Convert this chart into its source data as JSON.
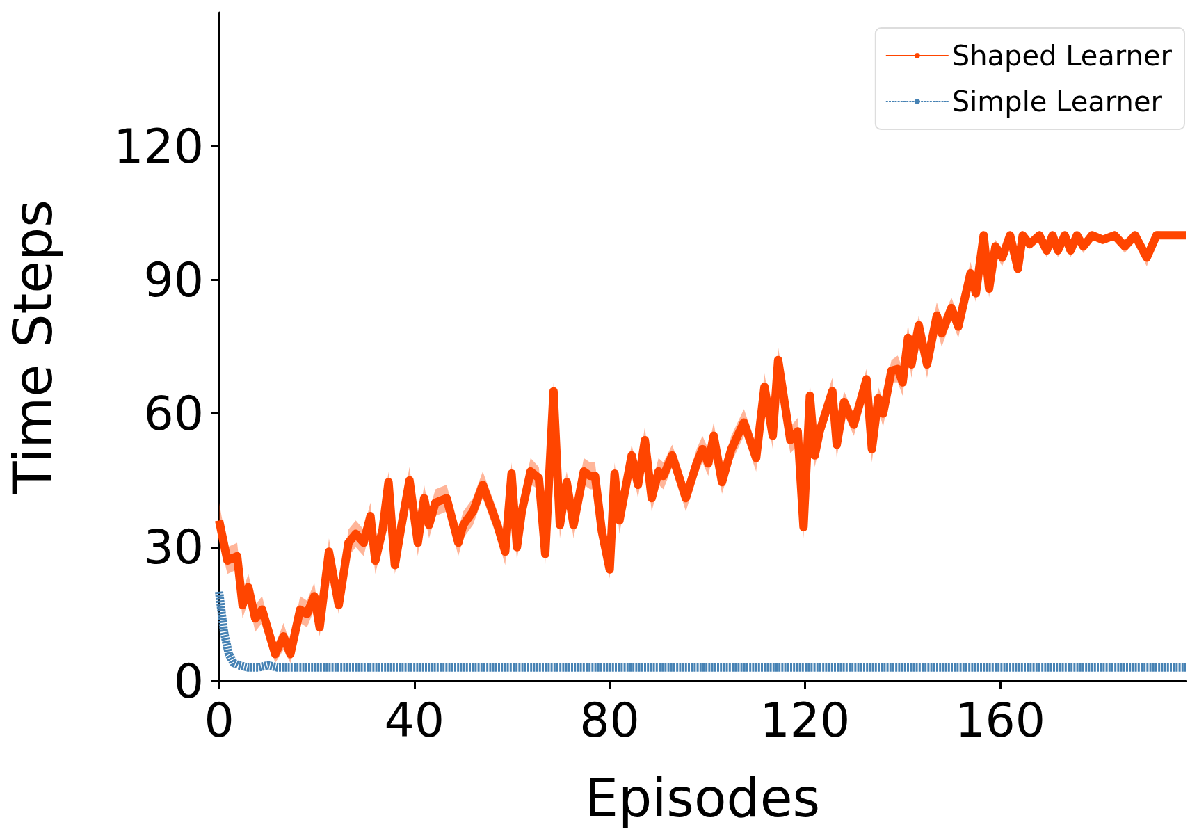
{
  "chart_data": {
    "type": "line",
    "xlabel": "Episodes",
    "ylabel": "Time Steps",
    "xlim": [
      0,
      198
    ],
    "xticks": [
      0,
      40,
      80,
      120,
      160
    ],
    "ylim": [
      0,
      150
    ],
    "yticks": [
      0,
      30,
      60,
      90,
      120
    ],
    "grid": false,
    "legend": "top right",
    "marker": "none",
    "series": [
      {
        "name": "Shaped Learner",
        "color": "#ff4500",
        "line_style": "solid",
        "x": [
          0,
          1.7,
          3.7,
          4.8,
          6,
          7.4,
          8.8,
          11.5,
          13.2,
          14.6,
          16.6,
          18,
          19.5,
          20.6,
          22.5,
          24.5,
          26.5,
          28,
          29.6,
          31,
          32,
          33.5,
          34.7,
          36,
          37.3,
          39,
          40.7,
          42,
          43,
          44.3,
          46.6,
          49,
          50,
          52,
          54,
          57,
          58.6,
          59.9,
          61,
          62,
          63.8,
          65.5,
          66.8,
          68.5,
          69.8,
          71.2,
          72.6,
          74.7,
          76,
          77,
          78.4,
          80,
          81,
          82,
          84.5,
          85.8,
          87.2,
          88.6,
          90,
          91,
          92.8,
          95.6,
          97.8,
          99,
          100.2,
          101.3,
          103,
          104.9,
          107.5,
          110,
          111.7,
          113.4,
          114.5,
          117,
          118.5,
          119.7,
          121,
          122,
          123,
          125.6,
          126.5,
          128,
          130,
          132.6,
          133.7,
          135,
          136,
          137.7,
          139,
          140,
          141.1,
          141.8,
          143.3,
          145,
          147,
          148,
          150,
          151.4,
          153.9,
          155,
          156.6,
          157.7,
          159,
          160.4,
          162,
          163.6,
          164.6,
          166,
          168,
          169.5,
          170.7,
          171.8,
          173.2,
          174.4,
          175.7,
          177,
          178.8,
          181,
          183.4,
          185.5,
          187.6,
          190,
          192,
          198
        ],
        "values": [
          36,
          27,
          28,
          17,
          21,
          14,
          16,
          6,
          10,
          6,
          16,
          15,
          19,
          12,
          29,
          17,
          31,
          33,
          31,
          37,
          27,
          34,
          44.6,
          26,
          34.5,
          45,
          31,
          41,
          35,
          40,
          41,
          31,
          35,
          38,
          44,
          35,
          29,
          46.5,
          30,
          38,
          47,
          45.5,
          28.5,
          65,
          35,
          44.6,
          35,
          47,
          46,
          46,
          33.5,
          25,
          46.5,
          36,
          50.6,
          44,
          54,
          41,
          47,
          46,
          50.6,
          41,
          48.8,
          52,
          48.8,
          55,
          44.6,
          52,
          58,
          50,
          66,
          55,
          72,
          54,
          56,
          34.5,
          64,
          50.6,
          56,
          65,
          53,
          62.6,
          57.5,
          67.7,
          52,
          63.4,
          60,
          69.6,
          70,
          67,
          77,
          71,
          79.8,
          71,
          82,
          78,
          83.7,
          79.5,
          91.5,
          87,
          100,
          88,
          97.5,
          95,
          100,
          92.5,
          100,
          98,
          100,
          96.6,
          100,
          96.6,
          100,
          96.6,
          100,
          97.5,
          100,
          99,
          100,
          97.5,
          100,
          95,
          100,
          100
        ],
        "lower": [
          32,
          24,
          25,
          14,
          18,
          11,
          13,
          4,
          7,
          4,
          13,
          12,
          16,
          10,
          26,
          15,
          28,
          30,
          28,
          34,
          24,
          31,
          42,
          24,
          31,
          42,
          28,
          38,
          32,
          37,
          38,
          28,
          32,
          35,
          41,
          32,
          26,
          44,
          27,
          35,
          44,
          43,
          26,
          63,
          32,
          42,
          32,
          44,
          43,
          43,
          31,
          23,
          44,
          33,
          48,
          41,
          51,
          38,
          44,
          43,
          48,
          38,
          46,
          49,
          46,
          52,
          42,
          49,
          55,
          47,
          63,
          52,
          69,
          51,
          53,
          32,
          61,
          48,
          53,
          62,
          50,
          60,
          55,
          65,
          49,
          61,
          57,
          67,
          67,
          64,
          74,
          68,
          77,
          68,
          79,
          75,
          81,
          77,
          89,
          85,
          98,
          86,
          96,
          93,
          99,
          91,
          99,
          97,
          99,
          95,
          99,
          95,
          99,
          95,
          99,
          96,
          99,
          98,
          99,
          96,
          99,
          93,
          99,
          100
        ],
        "upper": [
          40,
          30,
          31,
          20,
          24,
          17,
          19,
          8,
          13,
          8,
          19,
          18,
          22,
          14,
          32,
          19,
          34,
          36,
          34,
          40,
          30,
          37,
          47,
          28,
          38,
          48,
          34,
          44,
          38,
          43,
          44,
          34,
          38,
          41,
          47,
          38,
          32,
          49,
          33,
          41,
          50,
          48,
          31,
          67,
          38,
          47,
          38,
          50,
          49,
          49,
          36,
          27,
          49,
          39,
          53,
          47,
          57,
          44,
          50,
          49,
          53,
          44,
          52,
          55,
          52,
          58,
          47,
          55,
          61,
          53,
          69,
          58,
          75,
          57,
          59,
          37,
          67,
          53,
          59,
          68,
          56,
          65,
          60,
          70,
          55,
          66,
          63,
          72,
          73,
          70,
          80,
          74,
          82,
          74,
          85,
          81,
          86,
          82,
          94,
          89,
          101,
          90,
          99,
          97,
          101,
          94,
          101,
          99,
          101,
          98,
          101,
          98,
          101,
          98,
          101,
          99,
          101,
          100,
          101,
          99,
          101,
          97,
          101,
          100
        ]
      },
      {
        "name": "Simple Learner",
        "color": "#4682b4",
        "line_style": "dashed",
        "x": [
          0,
          1,
          2,
          3,
          4,
          6,
          8,
          10,
          12,
          16,
          20,
          30,
          40,
          50,
          60,
          70,
          80,
          90,
          100,
          110,
          120,
          130,
          140,
          150,
          160,
          170,
          180,
          190,
          198
        ],
        "values": [
          20,
          11,
          6,
          4,
          3.5,
          3,
          3,
          3.5,
          3,
          3,
          3,
          3,
          3,
          3,
          3,
          3,
          3,
          3,
          3,
          3,
          3,
          3,
          3,
          3,
          3,
          3,
          3,
          3,
          3
        ]
      }
    ]
  }
}
